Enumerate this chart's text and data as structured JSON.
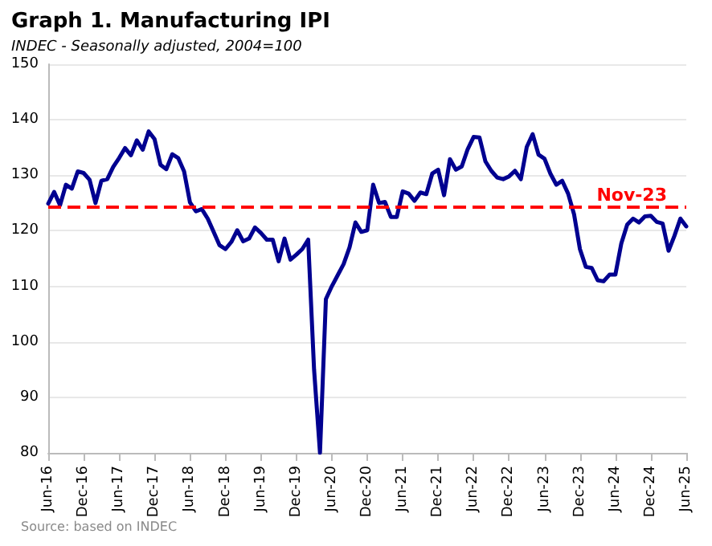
{
  "chart_data": {
    "type": "line",
    "title": "Graph 1. Manufacturing IPI",
    "subtitle": "INDEC - Seasonally adjusted, 2004=100",
    "annotations": [
      "Source: based on INDEC"
    ],
    "categories": [
      "Jun-16",
      null,
      null,
      null,
      null,
      null,
      "Dec-16",
      null,
      null,
      null,
      null,
      null,
      "Jun-17",
      null,
      null,
      null,
      null,
      null,
      "Dec-17",
      null,
      null,
      null,
      null,
      null,
      "Jun-18",
      null,
      null,
      null,
      null,
      null,
      "Dec-18",
      null,
      null,
      null,
      null,
      null,
      "Jun-19",
      null,
      null,
      null,
      null,
      null,
      "Dec-19",
      null,
      null,
      null,
      null,
      null,
      "Jun-20",
      null,
      null,
      null,
      null,
      null,
      "Dec-20",
      null,
      null,
      null,
      null,
      null,
      "Jun-21",
      null,
      null,
      null,
      null,
      null,
      "Dec-21",
      null,
      null,
      null,
      null,
      null,
      "Jun-22",
      null,
      null,
      null,
      null,
      null,
      "Dec-22",
      null,
      null,
      null,
      null,
      null,
      "Jun-23",
      null,
      null,
      null,
      null,
      null,
      "Dec-23",
      null,
      null,
      null,
      null,
      null,
      "Jun-24",
      null,
      null,
      null,
      null,
      null,
      "Dec-24",
      null,
      null,
      null,
      null,
      null,
      "Jun-25"
    ],
    "series": [
      {
        "color": "#000090",
        "values": [
          124.9,
          127,
          124.6,
          128.3,
          127.6,
          130.7,
          130.4,
          129.2,
          125,
          129,
          129.3,
          131.5,
          133.1,
          134.9,
          133.6,
          136.3,
          134.6,
          137.9,
          136.5,
          131.9,
          131.1,
          133.8,
          133.1,
          130.7,
          125.1,
          123.5,
          123.9,
          122.2,
          119.8,
          117.4,
          116.7,
          118,
          120.1,
          118.1,
          118.6,
          120.6,
          119.6,
          118.4,
          118.4,
          114.5,
          118.6,
          114.8,
          115.7,
          116.7,
          118.4,
          95,
          80,
          107.7,
          110,
          112,
          114,
          117,
          121.5,
          119.8,
          120.1,
          128.3,
          125,
          125.2,
          122.5,
          122.5,
          127.1,
          126.7,
          125.4,
          126.9,
          126.6,
          130.3,
          131,
          126.4,
          132.9,
          131,
          131.6,
          134.7,
          136.9,
          136.8,
          132.5,
          130.8,
          129.6,
          129.3,
          129.8,
          130.8,
          129.3,
          135.1,
          137.4,
          133.7,
          133,
          130.3,
          128.3,
          129,
          126.7,
          123,
          116.7,
          113.5,
          113.3,
          111.1,
          110.9,
          112.1,
          112.1,
          117.7,
          121.1,
          122.2,
          121.5,
          122.6,
          122.7,
          121.6,
          121.3,
          116.4,
          119.1,
          122.2,
          120.8
        ]
      }
    ],
    "ylim": [
      80,
      150
    ],
    "yticks": [
      80,
      90,
      100,
      110,
      120,
      130,
      140,
      150
    ],
    "grid": "y",
    "marker": "none",
    "line_style": "solid",
    "ref_lines": [
      {
        "axis": "y",
        "value": 124.2,
        "label": "Nov-23",
        "color": "#ff0000",
        "line_style": "dashed"
      }
    ]
  }
}
